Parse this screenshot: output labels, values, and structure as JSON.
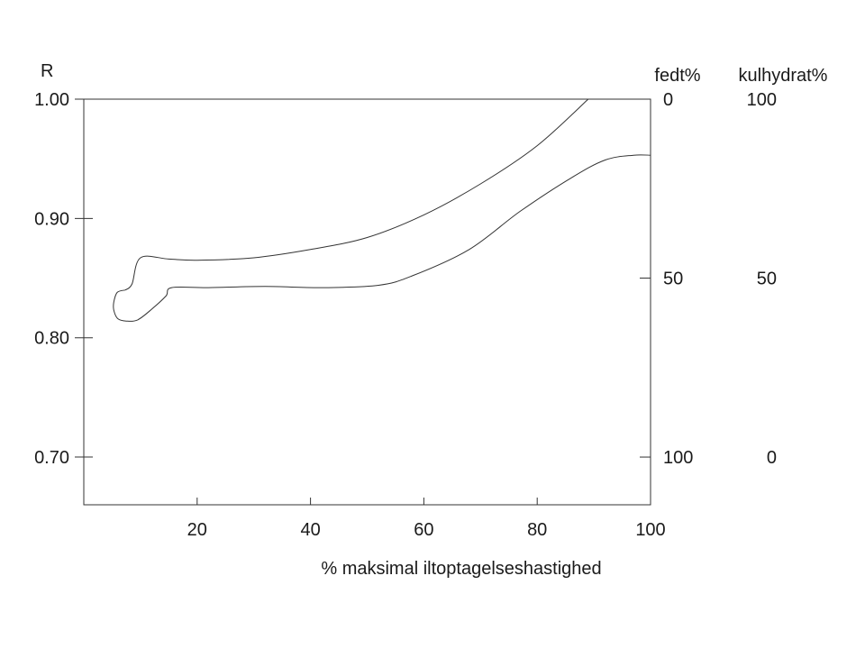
{
  "chart_data": {
    "type": "line",
    "xlabel": "% maksimal iltoptagelseshastighed",
    "ylabel": "R",
    "xlim": [
      0,
      100
    ],
    "ylim": [
      0.66,
      1.0
    ],
    "x_ticks": [
      20,
      40,
      60,
      80,
      100
    ],
    "y_ticks": [
      0.7,
      0.8,
      0.9,
      1.0
    ],
    "y_tick_labels": [
      "0.70",
      "0.80",
      "0.90",
      "1.00"
    ],
    "grid": false,
    "right_axes": [
      {
        "title": "fedt%",
        "ticks": [
          {
            "r": 1.0,
            "label": "0"
          },
          {
            "r": 0.85,
            "label": "50"
          },
          {
            "r": 0.7,
            "label": "100"
          }
        ]
      },
      {
        "title": "kulhydrat%",
        "ticks": [
          {
            "r": 1.0,
            "label": "100"
          },
          {
            "r": 0.85,
            "label": "50"
          },
          {
            "r": 0.7,
            "label": "0"
          }
        ]
      }
    ],
    "series": [
      {
        "values": [
          [
            7.3,
            0.84
          ],
          [
            5.9,
            0.838
          ],
          [
            5.3,
            0.83
          ],
          [
            5.3,
            0.823
          ],
          [
            6.0,
            0.816
          ],
          [
            7.5,
            0.814
          ],
          [
            9.5,
            0.815
          ],
          [
            12,
            0.824
          ],
          [
            14.5,
            0.835
          ],
          [
            15.5,
            0.842
          ],
          [
            22,
            0.842
          ],
          [
            32,
            0.843
          ],
          [
            42,
            0.842
          ],
          [
            52,
            0.844
          ],
          [
            58,
            0.852
          ],
          [
            68,
            0.874
          ],
          [
            77,
            0.906
          ],
          [
            86,
            0.934
          ],
          [
            92,
            0.949
          ],
          [
            97,
            0.953
          ],
          [
            100,
            0.953
          ]
        ]
      },
      {
        "values": [
          [
            7.3,
            0.84
          ],
          [
            8.5,
            0.845
          ],
          [
            10.0,
            0.867
          ],
          [
            15,
            0.866
          ],
          [
            20,
            0.865
          ],
          [
            30,
            0.867
          ],
          [
            40,
            0.874
          ],
          [
            50,
            0.884
          ],
          [
            60,
            0.903
          ],
          [
            70,
            0.929
          ],
          [
            80,
            0.961
          ],
          [
            89,
            1.0
          ]
        ]
      }
    ]
  }
}
